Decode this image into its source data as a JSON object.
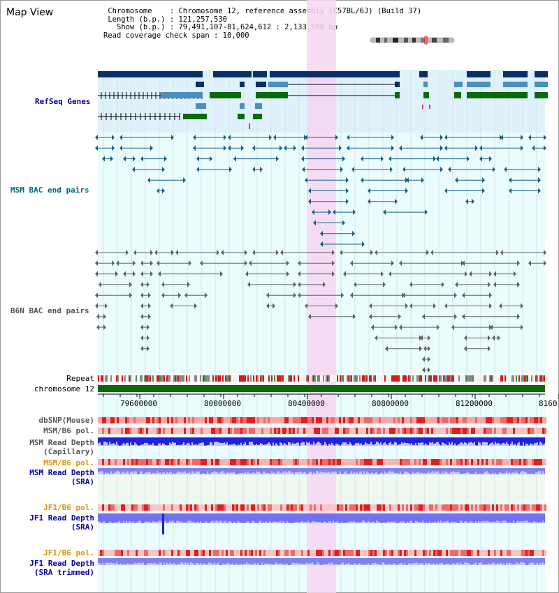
{
  "app": {
    "title": "Map View"
  },
  "header": {
    "line1": " Chromosome    : Chromosome 12, reference assembly (C57BL/6J) (Build 37)",
    "line2": " Length (b.p.) : 121,257,530",
    "line3": "   Show (b.p.) : 79,491,107-81,624,612 : 2,133,506 bp",
    "line4": "Read coverage check span : 10,000"
  },
  "tracks": {
    "refseq": "RefSeq Genes",
    "msm_bac": "MSM BAC end pairs",
    "b6n_bac": "B6N BAC end pairs",
    "repeat": "Repeat",
    "chromosome": "chromosome 12",
    "dbsnp": "dbSNP(Mouse)",
    "msm_b6_pol": "MSM/B6 pol.",
    "msm_depth_cap_1": "MSM Read Depth",
    "msm_depth_cap_2": "(Capillary)",
    "msm_b6_pol2": "MSM/B6 pol.",
    "msm_depth_sra_1": "MSM Read Depth",
    "msm_depth_sra_2": "(SRA)",
    "jf1_b6_pol": "JF1/B6 pol.",
    "jf1_depth_sra_1": "JF1 Read Depth",
    "jf1_depth_sra_2": "(SRA)",
    "jf1_b6_pol2": "JF1/B6 pol.",
    "jf1_depth_trim_1": "JF1 Read Depth",
    "jf1_depth_trim_2": "(SRA trimmed)"
  },
  "ruler": {
    "ticks": [
      "79600000",
      "80000000",
      "80400000",
      "80800000",
      "81200000",
      "8160"
    ]
  },
  "colors": {
    "refseq_dark": "#0b2d6b",
    "refseq_mid": "#4a8fbf",
    "refseq_green": "#0a6a0a",
    "bac_msm": "#1a6080",
    "bac_b6n": "#606060",
    "highlight": "#f7d6f2",
    "depth_blue": "#2222dd",
    "depth_light": "#7a7af2",
    "label_blue": "#000099",
    "label_orange": "#e09000",
    "label_teal": "#006a7a"
  }
}
